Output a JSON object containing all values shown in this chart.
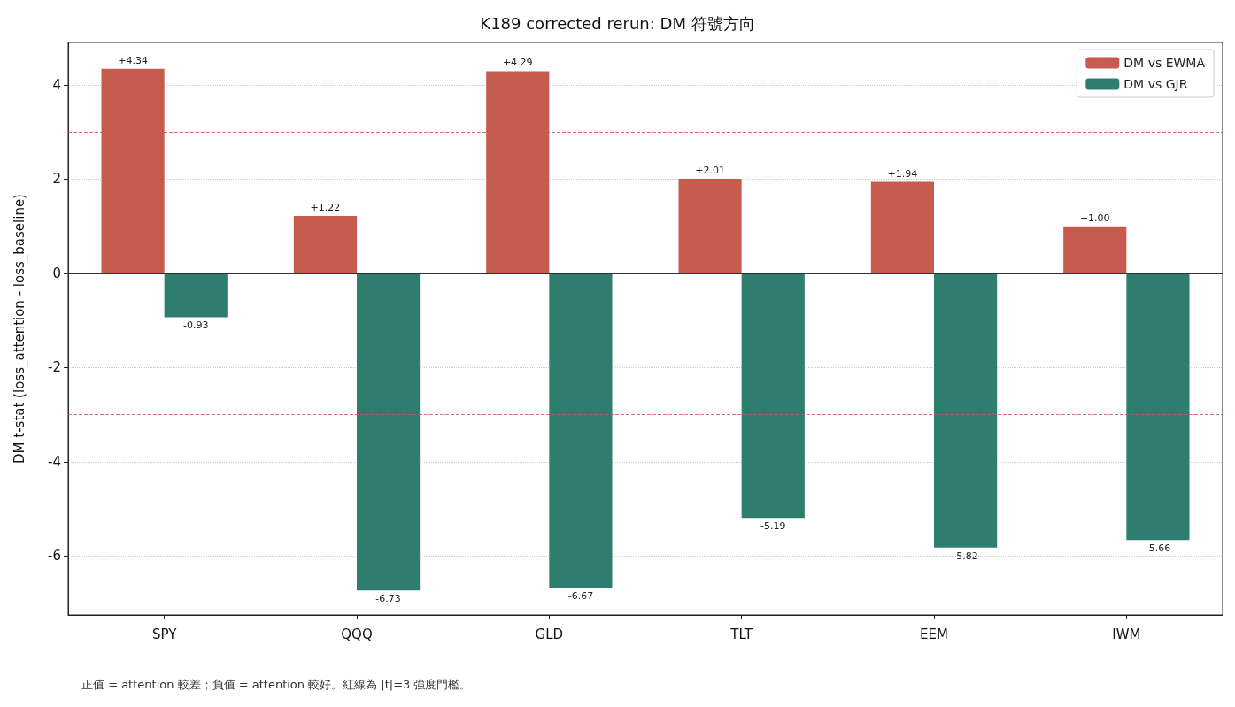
{
  "chart_data": {
    "type": "bar",
    "title": "K189 corrected rerun: DM 符號方向",
    "ylabel": "DM t-stat (loss_attention - loss_baseline)",
    "categories": [
      "SPY",
      "QQQ",
      "GLD",
      "TLT",
      "EEM",
      "IWM"
    ],
    "series": [
      {
        "name": "DM vs EWMA",
        "color": "#c75b4d",
        "values": [
          4.34,
          1.22,
          4.29,
          2.01,
          1.94,
          1.0
        ],
        "value_labels": [
          "+4.34",
          "+1.22",
          "+4.29",
          "+2.01",
          "+1.94",
          "+1.00"
        ]
      },
      {
        "name": "DM vs GJR",
        "color": "#2e7d6e",
        "values": [
          -0.93,
          -6.73,
          -6.67,
          -5.19,
          -5.82,
          -5.66
        ],
        "value_labels": [
          "-0.93",
          "-6.73",
          "-6.67",
          "-5.19",
          "-5.82",
          "-5.66"
        ]
      }
    ],
    "ylim": [
      -7.25,
      4.9
    ],
    "yticks": [
      -6,
      -4,
      -2,
      0,
      2,
      4
    ],
    "ref_lines": [
      {
        "axis": "y",
        "value": 0,
        "color": "#333333",
        "line_style": "solid"
      },
      {
        "axis": "y",
        "value": 3,
        "color": "#c75b4d",
        "line_style": "dashed"
      },
      {
        "axis": "y",
        "value": -3,
        "color": "#c75b4d",
        "line_style": "dashed"
      }
    ],
    "grid": "y",
    "legend": "top right",
    "annotations": [
      "正值 = attention 較差；負值 = attention 較好。紅線為 |t|=3 強度門檻。"
    ]
  }
}
